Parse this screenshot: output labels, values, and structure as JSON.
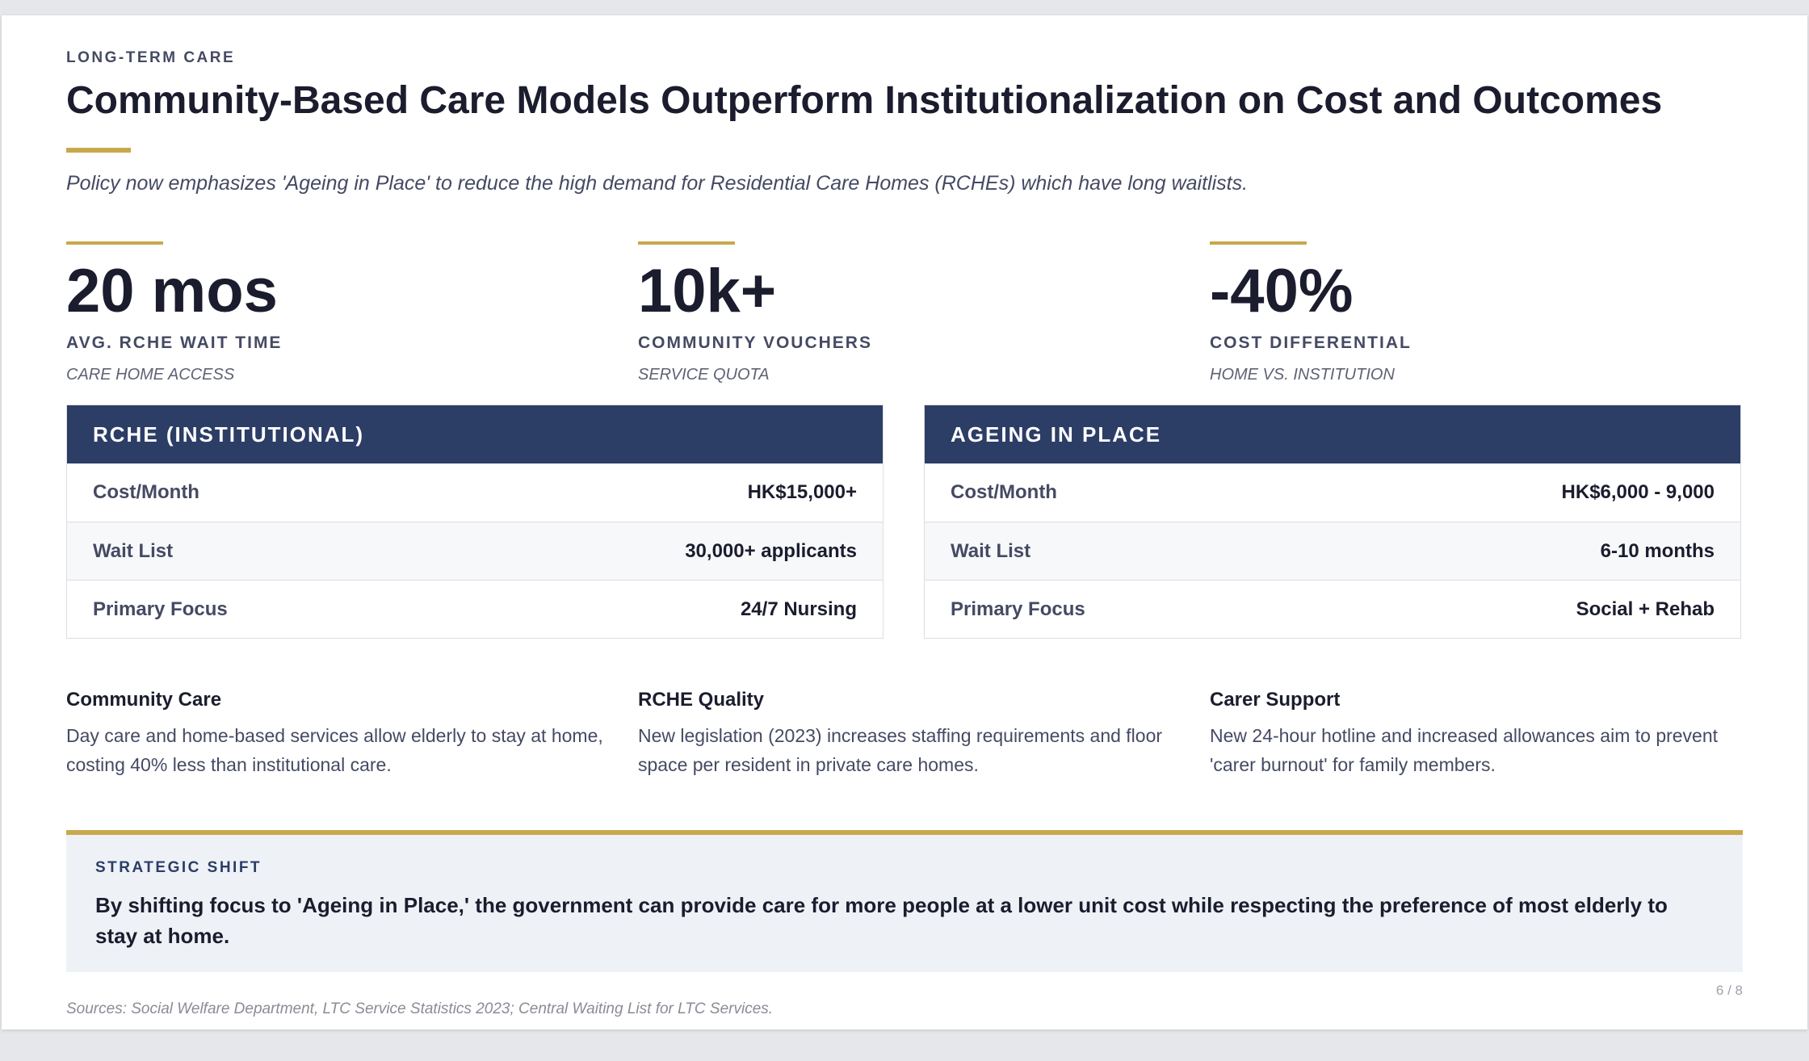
{
  "slide": {
    "eyebrow": "LONG-TERM CARE",
    "title": "Community-Based Care Models Outperform Institutionalization on Cost and Outcomes",
    "subtitle": "Policy now emphasizes 'Ageing in Place' to reduce the high demand for Residential Care Homes (RCHEs) which have long waitlists.",
    "accent_color": "#c9a84c",
    "header_color": "#2c3d66"
  },
  "stats": [
    {
      "value": "20 mos",
      "label": "AVG. RCHE WAIT TIME",
      "sub": "CARE HOME ACCESS"
    },
    {
      "value": "10k+",
      "label": "COMMUNITY VOUCHERS",
      "sub": "SERVICE QUOTA"
    },
    {
      "value": "-40%",
      "label": "COST DIFFERENTIAL",
      "sub": "HOME VS. INSTITUTION"
    }
  ],
  "comparison": [
    {
      "header": "RCHE (INSTITUTIONAL)",
      "rows": [
        {
          "key": "Cost/Month",
          "value": "HK$15,000+"
        },
        {
          "key": "Wait List",
          "value": "30,000+ applicants"
        },
        {
          "key": "Primary Focus",
          "value": "24/7 Nursing"
        }
      ]
    },
    {
      "header": "AGEING IN PLACE",
      "rows": [
        {
          "key": "Cost/Month",
          "value": "HK$6,000 - 9,000"
        },
        {
          "key": "Wait List",
          "value": "6-10 months"
        },
        {
          "key": "Primary Focus",
          "value": "Social + Rehab"
        }
      ]
    }
  ],
  "notes": [
    {
      "title": "Community Care",
      "body": "Day care and home-based services allow elderly to stay at home, costing 40% less than institutional care."
    },
    {
      "title": "RCHE Quality",
      "body": "New legislation (2023) increases staffing requirements and floor space per resident in private care homes."
    },
    {
      "title": "Carer Support",
      "body": "New 24-hour hotline and increased allowances aim to prevent 'carer burnout' for family members."
    }
  ],
  "callout": {
    "eyebrow": "STRATEGIC SHIFT",
    "text": "By shifting focus to 'Ageing in Place,' the government can provide care for more people at a lower unit cost while respecting the preference of most elderly to stay at home."
  },
  "footer": {
    "page": "6 / 8",
    "sources": "Sources: Social Welfare Department, LTC Service Statistics 2023; Central Waiting List for LTC Services."
  }
}
